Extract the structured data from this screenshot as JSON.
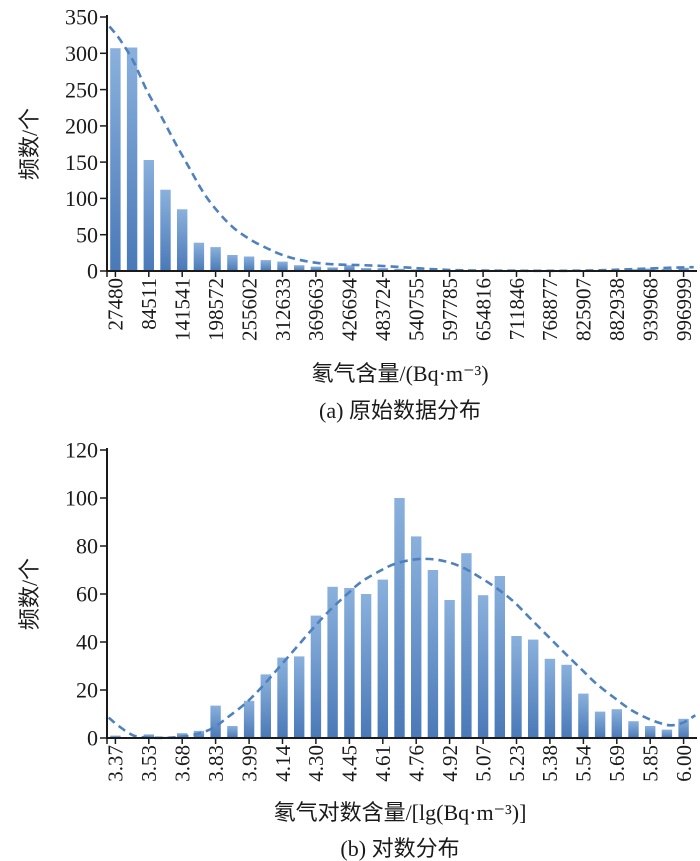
{
  "colors": {
    "bar_gradient_top": "#8ab1dd",
    "bar_gradient_bottom": "#4a79b8",
    "curve": "#4f81bd",
    "axis": "#1a1a1a",
    "text": "#1a1a1a",
    "background": "#ffffff"
  },
  "chart_data": [
    {
      "type": "bar",
      "title": "",
      "caption": "(a) 原始数据分布",
      "xlabel": "氡气含量/(Bq·m⁻³)",
      "ylabel": "频数/个",
      "ylim": [
        0,
        350
      ],
      "yticks": [
        0,
        50,
        100,
        150,
        200,
        250,
        300,
        350
      ],
      "grid": false,
      "legend": "none",
      "label_stride": 2,
      "categories": [
        "27480",
        "84511",
        "141541",
        "198572",
        "255602",
        "312633",
        "369663",
        "426694",
        "483724",
        "540755",
        "597785",
        "654816",
        "711846",
        "768877",
        "825907",
        "882938",
        "939968",
        "996999"
      ],
      "values": [
        307,
        308,
        153,
        112,
        85,
        39,
        33,
        22,
        20,
        15,
        13,
        8,
        6,
        5,
        8,
        4,
        4,
        3,
        2,
        1.5,
        1,
        0.5,
        0.5,
        0.5,
        0,
        0,
        0,
        0,
        0,
        0.5,
        1.5,
        2.5,
        3.5,
        3,
        4.5
      ],
      "fit_curve_points": [
        [
          0.15,
          337
        ],
        [
          0.8,
          318
        ],
        [
          1.6,
          288
        ],
        [
          2.4,
          248
        ],
        [
          3.2,
          215
        ],
        [
          4.0,
          180
        ],
        [
          4.9,
          143
        ],
        [
          5.8,
          107
        ],
        [
          6.7,
          80
        ],
        [
          7.6,
          59
        ],
        [
          8.6,
          43
        ],
        [
          9.6,
          31
        ],
        [
          10.5,
          22
        ],
        [
          11.4,
          16
        ],
        [
          12.3,
          12
        ],
        [
          13.3,
          9.5
        ],
        [
          14.3,
          8.5
        ],
        [
          15.3,
          8
        ],
        [
          16.4,
          7
        ],
        [
          17.5,
          5.5
        ],
        [
          18.5,
          4
        ],
        [
          19.5,
          2.5
        ],
        [
          20.4,
          1.5
        ],
        [
          21.3,
          1
        ],
        [
          22.5,
          0.6
        ],
        [
          24,
          0.4
        ],
        [
          25.5,
          0.3
        ],
        [
          27,
          0.3
        ],
        [
          28.5,
          0.5
        ],
        [
          29.8,
          1.2
        ],
        [
          31,
          2.2
        ],
        [
          32.2,
          3.2
        ],
        [
          33.4,
          4.3
        ],
        [
          34.4,
          5
        ],
        [
          35.1,
          5.4
        ]
      ]
    },
    {
      "type": "bar",
      "title": "",
      "caption": "(b) 对数分布",
      "xlabel": "氡气对数含量/[lg(Bq·m⁻³)]",
      "ylabel": "频数/个",
      "ylim": [
        0,
        120
      ],
      "yticks": [
        0,
        20,
        40,
        60,
        80,
        100,
        120
      ],
      "grid": false,
      "legend": "none",
      "label_stride": 2,
      "categories": [
        "3.37",
        "3.53",
        "3.68",
        "3.83",
        "3.99",
        "4.14",
        "4.30",
        "4.45",
        "4.61",
        "4.76",
        "4.92",
        "5.07",
        "5.23",
        "5.38",
        "5.54",
        "5.69",
        "5.85",
        "6.00"
      ],
      "values": [
        1,
        0,
        1.5,
        0.5,
        2,
        3,
        13.5,
        5,
        15.5,
        26.5,
        33.5,
        34,
        51,
        63,
        62.5,
        60,
        66,
        100,
        84,
        70,
        57.5,
        77,
        59.5,
        67.5,
        42.5,
        41,
        33,
        30.5,
        18.5,
        11,
        12,
        7,
        5,
        3.5,
        8
      ],
      "fit_curve_points": [
        [
          0.1,
          8.5
        ],
        [
          0.7,
          5
        ],
        [
          1.6,
          1
        ],
        [
          2.5,
          0.2
        ],
        [
          3.5,
          0.1
        ],
        [
          4.3,
          0.4
        ],
        [
          5.3,
          1.5
        ],
        [
          6.3,
          4
        ],
        [
          7.2,
          8.5
        ],
        [
          8.3,
          14.5
        ],
        [
          9.3,
          21.5
        ],
        [
          10.3,
          29.5
        ],
        [
          11.3,
          37.5
        ],
        [
          12.3,
          45.5
        ],
        [
          13.3,
          53
        ],
        [
          14.3,
          59.5
        ],
        [
          15.2,
          65
        ],
        [
          16.3,
          69.5
        ],
        [
          17.2,
          72.5
        ],
        [
          18.3,
          74.3
        ],
        [
          19.3,
          74.6
        ],
        [
          20.3,
          73.5
        ],
        [
          21.3,
          71
        ],
        [
          22.3,
          67
        ],
        [
          23.3,
          62.5
        ],
        [
          24.3,
          57
        ],
        [
          25.3,
          50
        ],
        [
          26.3,
          43
        ],
        [
          27.3,
          36
        ],
        [
          28.4,
          28.5
        ],
        [
          29.3,
          22.5
        ],
        [
          30.4,
          16.5
        ],
        [
          31.4,
          11.5
        ],
        [
          32.4,
          8
        ],
        [
          33.2,
          6
        ],
        [
          33.8,
          5.3
        ],
        [
          34.5,
          6.5
        ],
        [
          35.2,
          9.5
        ]
      ]
    }
  ]
}
